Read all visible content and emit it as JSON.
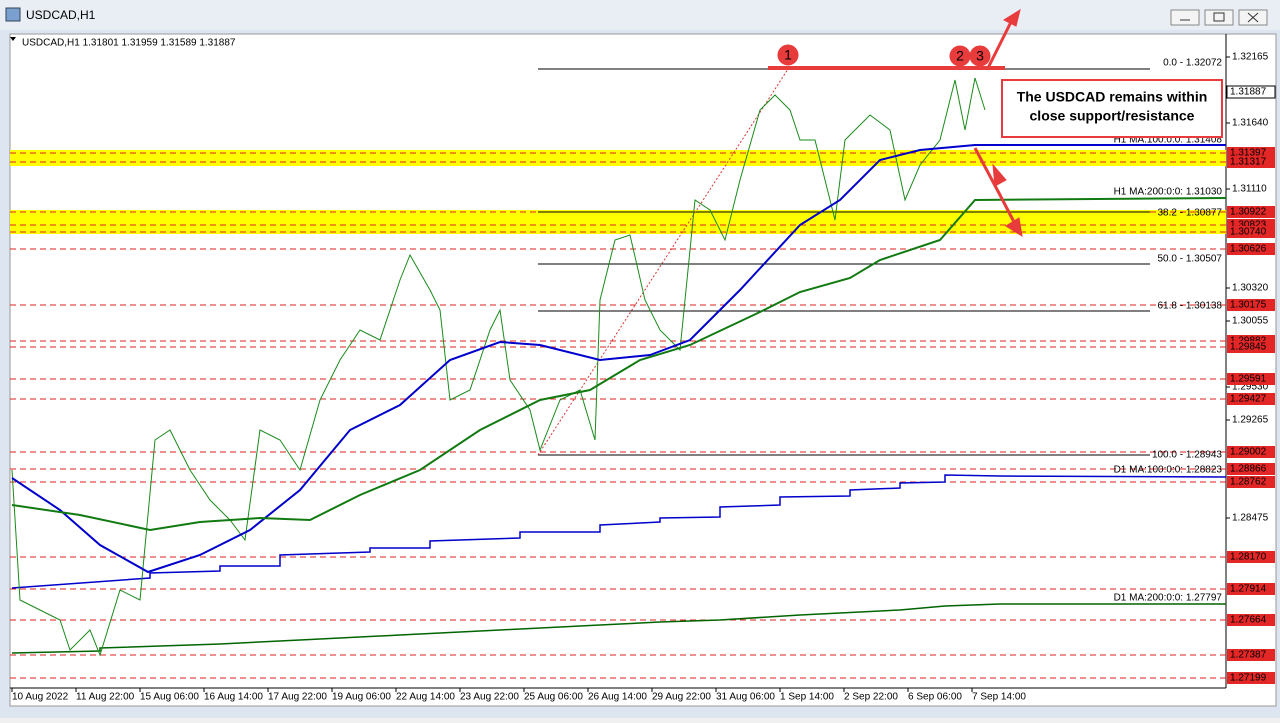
{
  "window": {
    "title": "USDCAD,H1"
  },
  "header": {
    "symbol_info": "USDCAD,H1  1.31801 1.31959 1.31589 1.31887"
  },
  "price_axis": {
    "labels": [
      "1.32165",
      "1.31640",
      "1.31110",
      "1.30320",
      "1.30055",
      "1.29530",
      "1.29265",
      "1.28475"
    ],
    "current_price": "1.31887",
    "levels": [
      "1.31397",
      "1.31317",
      "1.30922",
      "1.30823",
      "1.30740",
      "1.30626",
      "1.30175",
      "1.29882",
      "1.29845",
      "1.29591",
      "1.29427",
      "1.29002",
      "1.28866",
      "1.28762",
      "1.28170",
      "1.27914",
      "1.27664",
      "1.27387",
      "1.27199"
    ]
  },
  "line_labels": [
    "0.0 - 1.32072",
    "H1 MA:100:0:0: 1.31408",
    "H1 MA:200:0:0: 1.31030",
    "38.2 - 1.30877",
    "50.0 - 1.30507",
    "61.8 - 1.30138",
    "100.0 - 1.28943",
    "D1 MA:100:0:0: 1.28823",
    "D1 MA:200:0:0: 1.27797"
  ],
  "time_axis": {
    "labels": [
      "10 Aug 2022",
      "11 Aug 22:00",
      "15 Aug 06:00",
      "16 Aug 14:00",
      "17 Aug 22:00",
      "19 Aug 06:00",
      "22 Aug 14:00",
      "23 Aug 22:00",
      "25 Aug 06:00",
      "26 Aug 14:00",
      "29 Aug 22:00",
      "31 Aug 06:00",
      "1 Sep 14:00",
      "2 Sep 22:00",
      "6 Sep 06:00",
      "7 Sep 14:00"
    ]
  },
  "annotation": {
    "lines": [
      "The USDCAD remains within",
      "close support/resistance"
    ]
  },
  "markers": [
    "1",
    "2",
    "3"
  ]
}
